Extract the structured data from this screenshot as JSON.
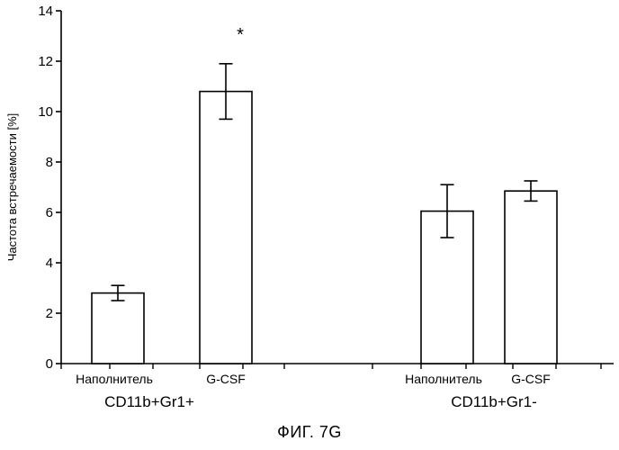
{
  "chart_data": {
    "type": "bar",
    "ylabel": "Частота встречаемости [%]",
    "xlabel": "",
    "ylim": [
      0,
      14
    ],
    "yticks": [
      0,
      2,
      4,
      6,
      8,
      10,
      12,
      14
    ],
    "groups": [
      {
        "label": "CD11b+Gr1+",
        "bars": [
          {
            "category": "Наполнитель",
            "value": 2.8,
            "error": 0.3,
            "annotation": ""
          },
          {
            "category": "G-CSF",
            "value": 10.8,
            "error": 1.1,
            "annotation": "*"
          }
        ]
      },
      {
        "label": "CD11b+Gr1-",
        "bars": [
          {
            "category": "Наполнитель",
            "value": 6.05,
            "error": 1.05,
            "annotation": ""
          },
          {
            "category": "G-CSF",
            "value": 6.85,
            "error": 0.4,
            "annotation": ""
          }
        ]
      }
    ]
  },
  "caption": "ФИГ. 7G"
}
